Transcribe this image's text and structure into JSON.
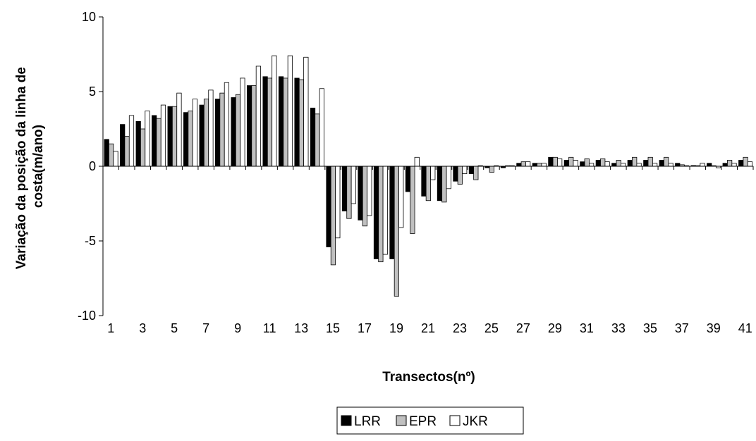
{
  "chart_data": {
    "type": "bar",
    "title": "",
    "xlabel": "Transectos(nº)",
    "ylabel": "Variação da posição da linha de costa(m/ano)",
    "ylabel_lines": [
      "Variação da posição da linha de",
      "costa(m/ano)"
    ],
    "ylim": [
      -10,
      10
    ],
    "yticks": [
      10,
      5,
      0,
      -5,
      -10
    ],
    "grid": false,
    "legend_position": "bottom",
    "categories": [
      1,
      2,
      3,
      4,
      5,
      6,
      7,
      8,
      9,
      10,
      11,
      12,
      13,
      14,
      15,
      16,
      17,
      18,
      19,
      20,
      21,
      22,
      23,
      24,
      25,
      26,
      27,
      28,
      29,
      30,
      31,
      32,
      33,
      34,
      35,
      36,
      37,
      38,
      39,
      40,
      41
    ],
    "xtick_labels": [
      1,
      3,
      5,
      7,
      9,
      11,
      13,
      15,
      17,
      19,
      21,
      23,
      25,
      27,
      29,
      31,
      33,
      35,
      37,
      39,
      41
    ],
    "series": [
      {
        "name": "LRR",
        "color": "#000000",
        "values": [
          1.8,
          2.8,
          3.0,
          3.4,
          4.0,
          3.6,
          4.1,
          4.5,
          4.6,
          5.4,
          6.0,
          6.0,
          5.9,
          3.9,
          -5.4,
          -3.0,
          -3.6,
          -6.2,
          -6.2,
          -1.7,
          -2.0,
          -2.3,
          -1.0,
          -0.5,
          -0.1,
          -0.1,
          0.2,
          0.2,
          0.6,
          0.4,
          0.3,
          0.4,
          0.2,
          0.4,
          0.4,
          0.4,
          0.2,
          0.05,
          0.2,
          0.2,
          0.4
        ]
      },
      {
        "name": "EPR",
        "color": "#c0c0c0",
        "values": [
          1.5,
          2.0,
          2.5,
          3.2,
          4.0,
          3.7,
          4.5,
          4.9,
          4.8,
          5.4,
          5.9,
          5.9,
          5.8,
          3.5,
          -6.6,
          -3.5,
          -4.0,
          -6.4,
          -8.7,
          -4.5,
          -2.3,
          -2.4,
          -1.2,
          -0.9,
          -0.4,
          0.0,
          0.3,
          0.2,
          0.6,
          0.6,
          0.5,
          0.5,
          0.4,
          0.6,
          0.6,
          0.6,
          0.1,
          0.0,
          0.0,
          0.4,
          0.6
        ]
      },
      {
        "name": "JKR",
        "color": "#ffffff",
        "values": [
          1.0,
          3.4,
          3.7,
          4.1,
          4.9,
          4.5,
          5.1,
          5.6,
          5.9,
          6.7,
          7.4,
          7.4,
          7.3,
          5.2,
          -4.8,
          -2.5,
          -3.3,
          -5.9,
          -4.1,
          0.6,
          -0.9,
          -1.5,
          -0.5,
          0.0,
          0.0,
          0.0,
          0.3,
          0.2,
          0.5,
          0.4,
          0.2,
          0.3,
          0.2,
          0.2,
          0.2,
          0.2,
          0.0,
          0.2,
          -0.1,
          0.2,
          0.3
        ]
      }
    ]
  }
}
